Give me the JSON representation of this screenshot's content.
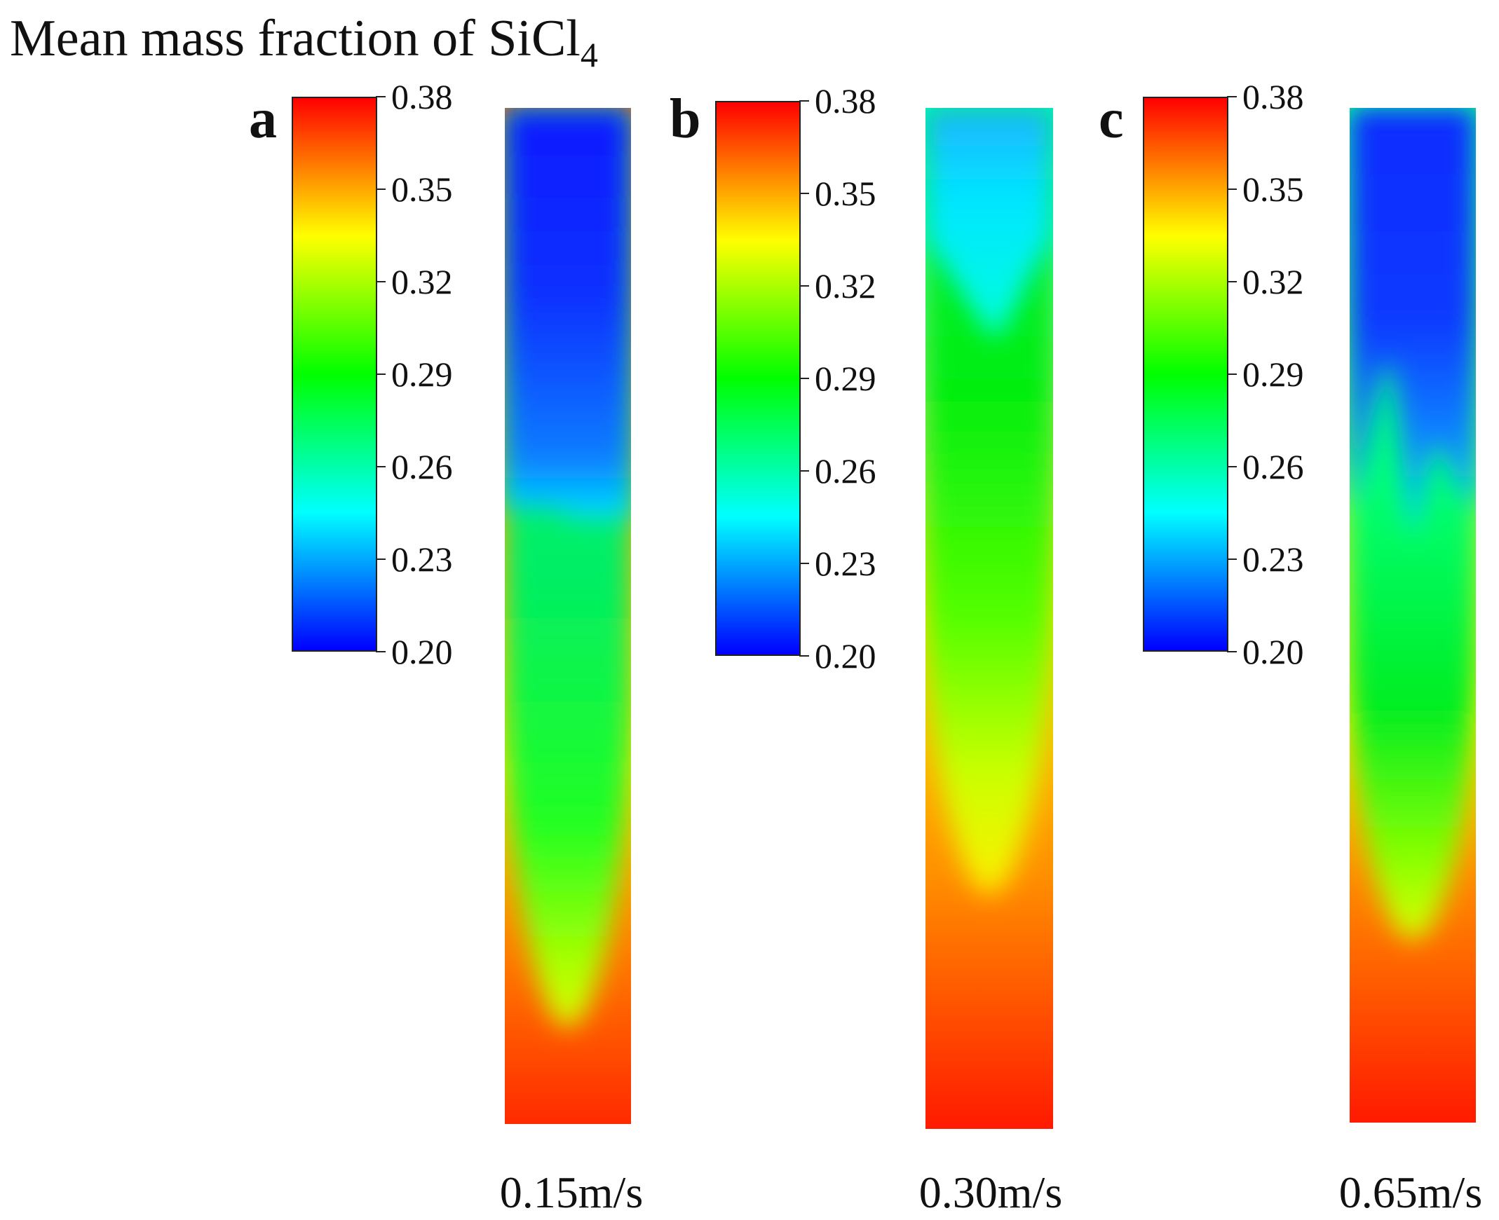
{
  "figure": {
    "title_text": "Mean mass fraction  of SiCl",
    "title_subscript": "4"
  },
  "colormap": [
    "#0000ff",
    "#00ffff",
    "#00ff00",
    "#ffff00",
    "#ff0000"
  ],
  "chart_data": {
    "type": "heatmap",
    "title": "Mean mass fraction of SiCl4",
    "colorbar_range": [
      0.2,
      0.38
    ],
    "colorbar_ticks": [
      "0.38",
      "0.35",
      "0.32",
      "0.29",
      "0.26",
      "0.23",
      "0.20"
    ],
    "panels": [
      {
        "letter": "a",
        "velocity": "0.15m/s"
      },
      {
        "letter": "b",
        "velocity": "0.30m/s"
      },
      {
        "letter": "c",
        "velocity": "0.65m/s"
      }
    ]
  }
}
